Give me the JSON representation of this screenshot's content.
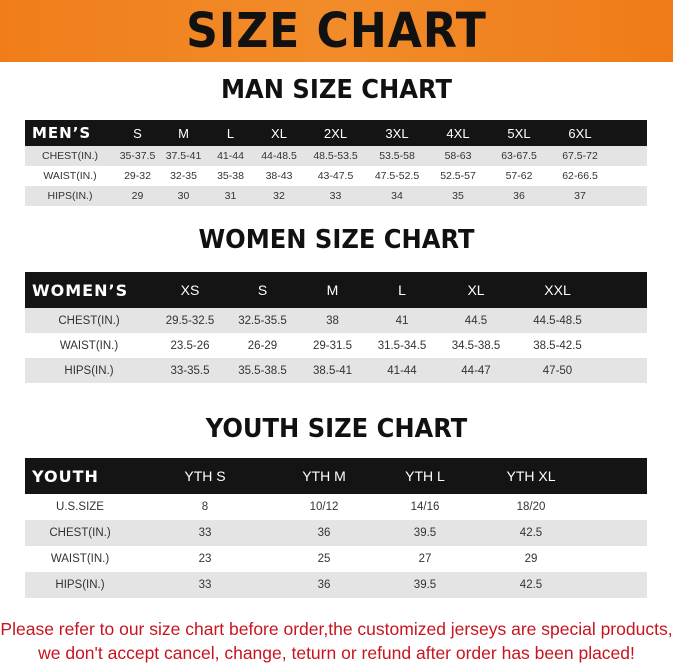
{
  "banner_title": "SIZE CHART",
  "men": {
    "title": "MAN SIZE CHART",
    "header": [
      "MEN’S",
      "S",
      "M",
      "L",
      "XL",
      "2XL",
      "3XL",
      "4XL",
      "5XL",
      "6XL"
    ],
    "rows": [
      [
        "CHEST(IN.)",
        "35-37.5",
        "37.5-41",
        "41-44",
        "44-48.5",
        "48.5-53.5",
        "53.5-58",
        "58-63",
        "63-67.5",
        "67.5-72"
      ],
      [
        "WAIST(IN.)",
        "29-32",
        "32-35",
        "35-38",
        "38-43",
        "43-47.5",
        "47.5-52.5",
        "52.5-57",
        "57-62",
        "62-66.5"
      ],
      [
        "HIPS(IN.)",
        "29",
        "30",
        "31",
        "32",
        "33",
        "34",
        "35",
        "36",
        "37"
      ]
    ]
  },
  "women": {
    "title": "WOMEN SIZE CHART",
    "header": [
      "WOMEN’S",
      "XS",
      "S",
      "M",
      "L",
      "XL",
      "XXL"
    ],
    "rows": [
      [
        "CHEST(IN.)",
        "29.5-32.5",
        "32.5-35.5",
        "38",
        "41",
        "44.5",
        "44.5-48.5"
      ],
      [
        "WAIST(IN.)",
        "23.5-26",
        "26-29",
        "29-31.5",
        "31.5-34.5",
        "34.5-38.5",
        "38.5-42.5"
      ],
      [
        "HIPS(IN.)",
        "33-35.5",
        "35.5-38.5",
        "38.5-41",
        "41-44",
        "44-47",
        "47-50"
      ]
    ]
  },
  "youth": {
    "title": "YOUTH SIZE CHART",
    "header": [
      "YOUTH",
      "YTH S",
      "YTH M",
      "YTH L",
      "YTH XL"
    ],
    "rows": [
      [
        "U.S.SIZE",
        "8",
        "10/12",
        "14/16",
        "18/20"
      ],
      [
        "CHEST(IN.)",
        "33",
        "36",
        "39.5",
        "42.5"
      ],
      [
        "WAIST(IN.)",
        "23",
        "25",
        "27",
        "29"
      ],
      [
        "HIPS(IN.)",
        "33",
        "36",
        "39.5",
        "42.5"
      ]
    ]
  },
  "note": {
    "line1": "Please refer to our size chart before order,the customized jerseys are special products,",
    "line2": "we don't accept cancel, change, teturn or refund after order has been placed!"
  },
  "colors": {
    "banner": "#f07d1a",
    "header": "#141414",
    "note": "#c8141e"
  }
}
